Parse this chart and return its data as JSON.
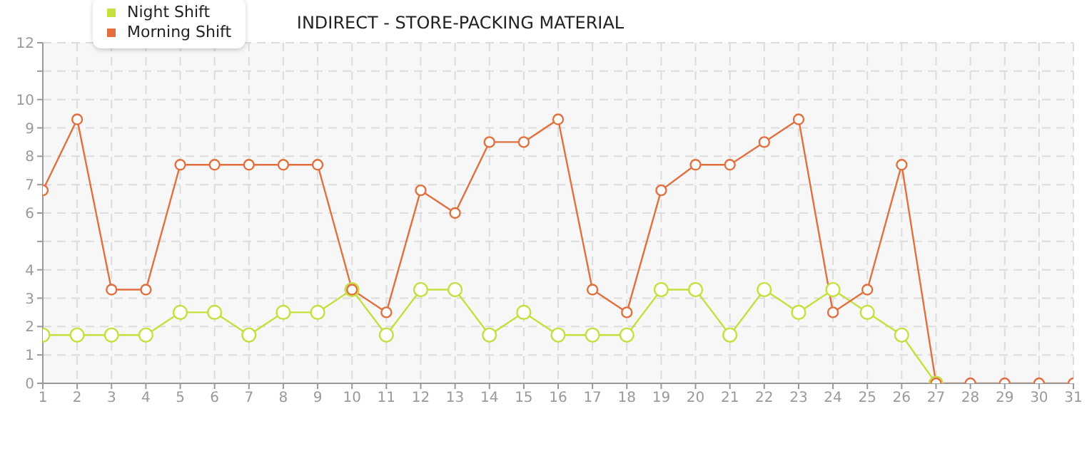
{
  "chart_data": {
    "type": "line",
    "title": "INDIRECT - STORE-PACKING  MATERIAL",
    "x": [
      1,
      2,
      3,
      4,
      5,
      6,
      7,
      8,
      9,
      10,
      11,
      12,
      13,
      14,
      15,
      16,
      17,
      18,
      19,
      20,
      21,
      22,
      23,
      24,
      25,
      26,
      27,
      28,
      29,
      30,
      31
    ],
    "series": [
      {
        "name": "Night Shift",
        "color": "#c5e03e",
        "values": [
          1.7,
          1.7,
          1.7,
          1.7,
          2.5,
          2.5,
          1.7,
          2.5,
          2.5,
          3.3,
          1.7,
          3.3,
          3.3,
          1.7,
          2.5,
          1.7,
          1.7,
          1.7,
          3.3,
          3.3,
          1.7,
          3.3,
          2.5,
          3.3,
          2.5,
          1.7,
          0,
          null,
          null,
          null,
          null
        ]
      },
      {
        "name": "Morning Shift",
        "color": "#e2703f",
        "values": [
          6.8,
          9.3,
          3.3,
          3.3,
          7.7,
          7.7,
          7.7,
          7.7,
          7.7,
          3.3,
          2.5,
          6.8,
          6,
          8.5,
          8.5,
          9.3,
          3.3,
          2.5,
          6.8,
          7.7,
          7.7,
          8.5,
          9.3,
          2.5,
          3.3,
          7.7,
          0,
          0,
          0,
          0,
          0
        ]
      }
    ],
    "xlim": [
      1,
      31
    ],
    "xticks": [
      1,
      2,
      3,
      4,
      5,
      6,
      7,
      8,
      9,
      10,
      11,
      12,
      13,
      14,
      15,
      16,
      17,
      18,
      19,
      20,
      21,
      22,
      23,
      24,
      25,
      26,
      27,
      28,
      29,
      30,
      31
    ],
    "ylim": [
      0,
      12
    ],
    "yticks": [
      0,
      1,
      2,
      3,
      4,
      {
        "value": 5,
        "label": null
      },
      6,
      7,
      8,
      9,
      10,
      {
        "value": 11,
        "label": null
      },
      12
    ],
    "grid": true,
    "legend": "top left",
    "marker": "circle",
    "line_style": "solid"
  }
}
